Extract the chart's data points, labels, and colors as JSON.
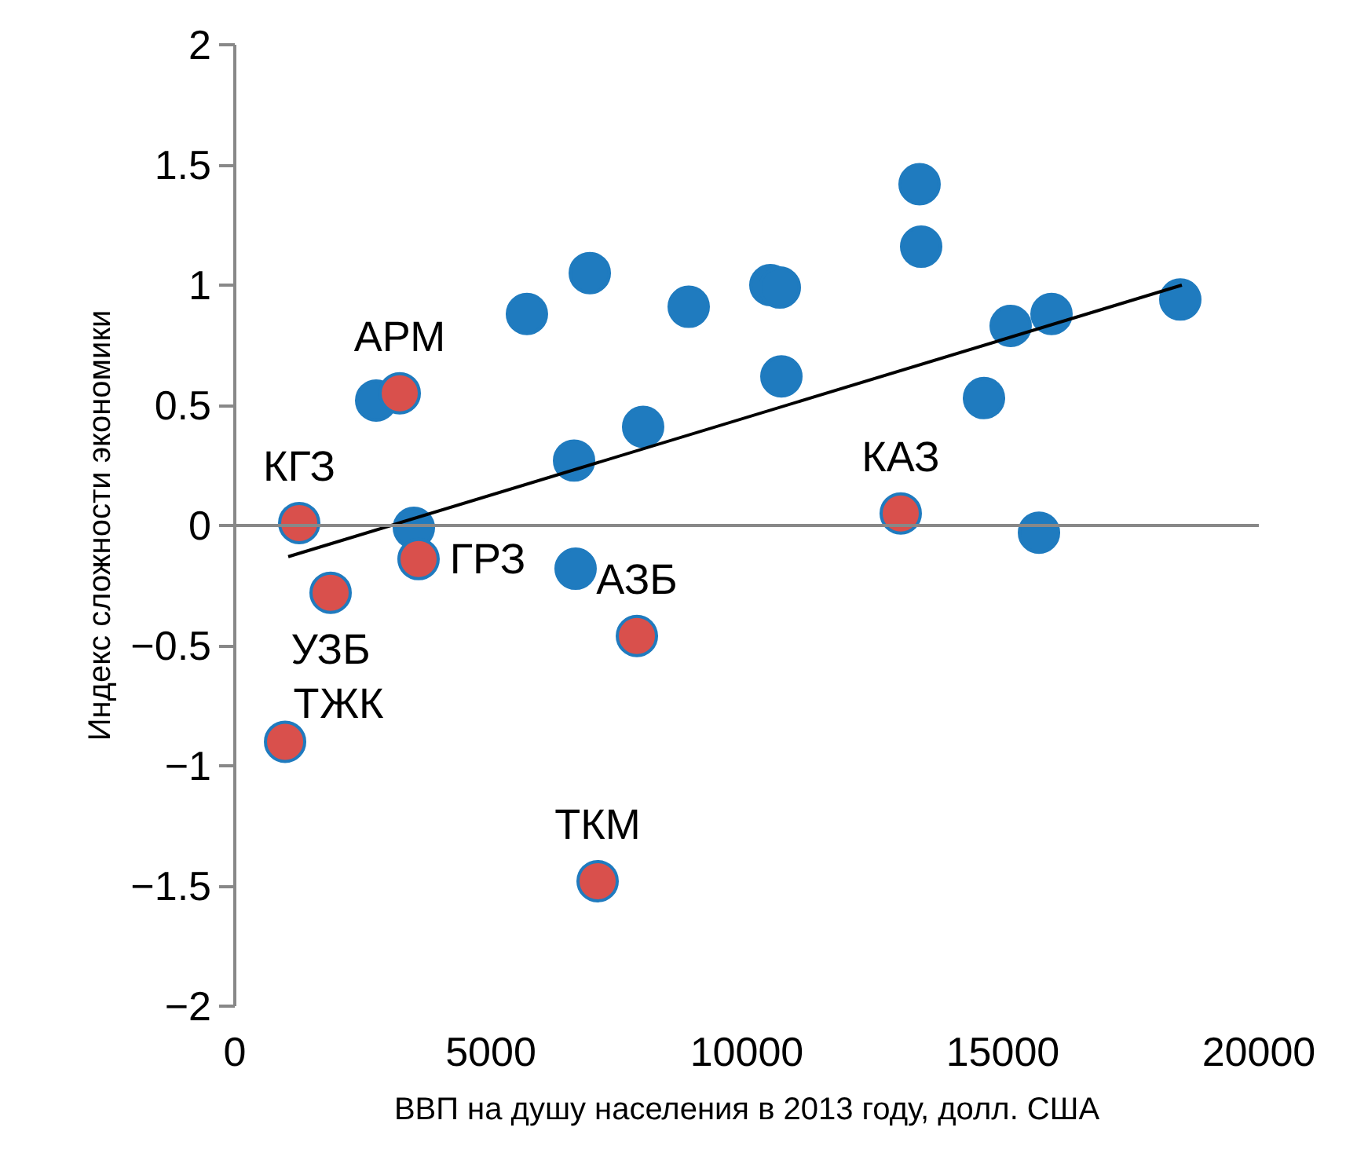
{
  "chart_data": {
    "type": "scatter",
    "xlabel": "ВВП на душу населения в 2013 году, долл. США",
    "ylabel": "Индекс сложности экономики",
    "xlim": [
      0,
      20000
    ],
    "xticks": [
      0,
      5000,
      10000,
      15000,
      20000
    ],
    "ylim": [
      -2,
      2
    ],
    "yticks": [
      -2,
      -1.5,
      -1,
      -0.5,
      0,
      0.5,
      1,
      1.5,
      2
    ],
    "marker": "circle",
    "ref_lines": [
      {
        "axis": "y",
        "value": 0,
        "color": "#888888"
      }
    ],
    "series": [
      {
        "color": "#1f7bbf",
        "x": [
          5705,
          6933,
          8865,
          10460,
          10644,
          10675,
          13374,
          13405,
          14632,
          15153,
          15951,
          18466,
          15706,
          7975,
          6626,
          6656,
          2761,
          3497
        ],
        "values": [
          0.88,
          1.05,
          0.91,
          1.0,
          0.99,
          0.62,
          1.42,
          1.16,
          0.53,
          0.83,
          0.88,
          0.94,
          -0.03,
          0.41,
          0.27,
          -0.18,
          0.52,
          -0.01
        ]
      },
      {
        "color": "#d9504c",
        "x": [
          3221,
          1258,
          3589,
          1871,
          7853,
          982,
          7086,
          13006
        ],
        "values": [
          0.55,
          0.01,
          -0.14,
          -0.28,
          -0.46,
          -0.9,
          -1.48,
          0.05
        ]
      },
      {
        "type": "line",
        "marker": "none",
        "color": "#000000",
        "x": [
          1043,
          18497
        ],
        "values": [
          -0.13,
          1.0
        ]
      }
    ],
    "annotations": [
      {
        "text": "АРМ",
        "x": 3221,
        "y": 0.55
      },
      {
        "text": "КГЗ",
        "x": 1258,
        "y": 0.01
      },
      {
        "text": "ГРЗ",
        "x": 3589,
        "y": -0.14
      },
      {
        "text": "УЗБ",
        "x": 1871,
        "y": -0.28
      },
      {
        "text": "АЗБ",
        "x": 7853,
        "y": -0.46
      },
      {
        "text": "ТЖК",
        "x": 982,
        "y": -0.9
      },
      {
        "text": "ТКМ",
        "x": 7086,
        "y": -1.48
      },
      {
        "text": "КАЗ",
        "x": 13006,
        "y": 0.05
      }
    ]
  }
}
